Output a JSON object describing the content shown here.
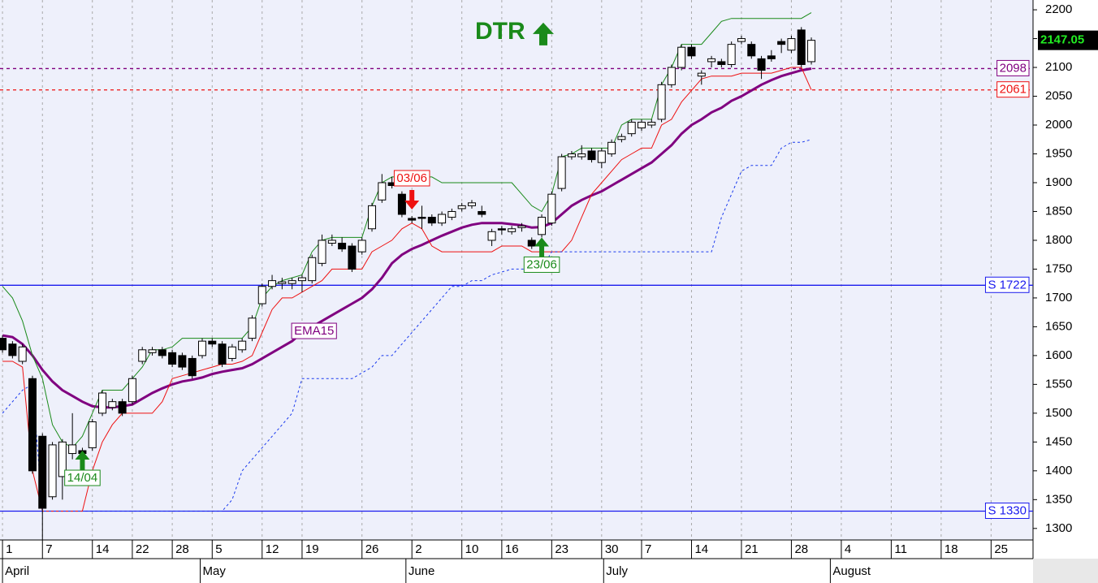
{
  "chart_data": {
    "type": "candlestick",
    "title": "DTR",
    "title_color": "#1a8a1a",
    "x": [
      0,
      1,
      2,
      3,
      4,
      5,
      6,
      7,
      8,
      9,
      10,
      11,
      12,
      13,
      14,
      15,
      16,
      17,
      18,
      19,
      20,
      21,
      22,
      23,
      24,
      25,
      26,
      27,
      28,
      29,
      30,
      31,
      32,
      33,
      34,
      35,
      36,
      37,
      38,
      39,
      40,
      41,
      42,
      43,
      44,
      45,
      46,
      47,
      48,
      49,
      50,
      51,
      52,
      53,
      54,
      55,
      56,
      57,
      58,
      59,
      60,
      61,
      62,
      63,
      64,
      65,
      66,
      67,
      68,
      69,
      70,
      71,
      72,
      73,
      74,
      75,
      76,
      77,
      78,
      79,
      80,
      81
    ],
    "open": [
      1630,
      1620,
      1590,
      1560,
      1460,
      1355,
      1390,
      1430,
      1435,
      1440,
      1500,
      1510,
      1520,
      1520,
      1590,
      1605,
      1610,
      1605,
      1600,
      1595,
      1600,
      1625,
      1620,
      1595,
      1610,
      1630,
      1690,
      1720,
      1725,
      1725,
      1730,
      1730,
      1760,
      1795,
      1795,
      1790,
      1780,
      1820,
      1870,
      1900,
      1880,
      1838,
      1840,
      1840,
      1830,
      1840,
      1855,
      1860,
      1850,
      1800,
      1820,
      1815,
      1822,
      1800,
      1810,
      1830,
      1890,
      1945,
      1945,
      1955,
      1935,
      1950,
      1975,
      1985,
      1995,
      2000,
      2010,
      2070,
      2100,
      2135,
      2085,
      2110,
      2110,
      2105,
      2145,
      2140,
      2115,
      2120,
      2145,
      2130,
      2165,
      2110
    ],
    "high": [
      1635,
      1625,
      1620,
      1565,
      1465,
      1450,
      1455,
      1500,
      1440,
      1490,
      1540,
      1525,
      1525,
      1565,
      1615,
      1615,
      1615,
      1610,
      1605,
      1600,
      1630,
      1630,
      1625,
      1620,
      1630,
      1670,
      1725,
      1740,
      1735,
      1735,
      1740,
      1775,
      1810,
      1810,
      1805,
      1795,
      1805,
      1865,
      1915,
      1910,
      1885,
      1842,
      1860,
      1845,
      1850,
      1855,
      1865,
      1870,
      1860,
      1820,
      1825,
      1825,
      1830,
      1805,
      1845,
      1885,
      1950,
      1955,
      1965,
      1960,
      1960,
      1975,
      1985,
      2010,
      2010,
      2010,
      2075,
      2105,
      2140,
      2140,
      2095,
      2120,
      2115,
      2145,
      2155,
      2145,
      2120,
      2130,
      2150,
      2155,
      2170,
      2152
    ],
    "low": [
      1605,
      1595,
      1585,
      1395,
      1280,
      1350,
      1350,
      1420,
      1425,
      1435,
      1495,
      1505,
      1495,
      1515,
      1585,
      1600,
      1595,
      1580,
      1575,
      1560,
      1595,
      1615,
      1580,
      1590,
      1605,
      1625,
      1685,
      1715,
      1715,
      1715,
      1710,
      1725,
      1755,
      1790,
      1780,
      1745,
      1775,
      1815,
      1865,
      1890,
      1840,
      1830,
      1820,
      1825,
      1825,
      1835,
      1850,
      1855,
      1840,
      1790,
      1810,
      1810,
      1815,
      1785,
      1805,
      1825,
      1885,
      1940,
      1940,
      1935,
      1925,
      1945,
      1970,
      1980,
      1990,
      1995,
      2005,
      2065,
      2095,
      2115,
      2070,
      2100,
      2100,
      2100,
      2140,
      2115,
      2080,
      2110,
      2125,
      2125,
      2100,
      2105
    ],
    "close": [
      1610,
      1600,
      1615,
      1400,
      1335,
      1445,
      1450,
      1445,
      1430,
      1485,
      1535,
      1520,
      1500,
      1560,
      1610,
      1610,
      1600,
      1585,
      1580,
      1565,
      1625,
      1620,
      1585,
      1615,
      1625,
      1665,
      1720,
      1730,
      1728,
      1730,
      1735,
      1770,
      1800,
      1800,
      1785,
      1750,
      1800,
      1860,
      1900,
      1895,
      1845,
      1835,
      1838,
      1830,
      1845,
      1850,
      1860,
      1865,
      1845,
      1815,
      1818,
      1820,
      1825,
      1790,
      1840,
      1880,
      1945,
      1950,
      1950,
      1940,
      1955,
      1970,
      1980,
      2005,
      2005,
      2005,
      2070,
      2100,
      2135,
      2120,
      2090,
      2115,
      2105,
      2140,
      2150,
      2120,
      2095,
      2115,
      2140,
      2150,
      2105,
      2147.05
    ],
    "overlays": [
      {
        "color": "#800080",
        "width": 3,
        "style": "solid",
        "values": [
          1635,
          1632,
          1620,
          1600,
          1575,
          1555,
          1540,
          1530,
          1520,
          1512,
          1510,
          1510,
          1512,
          1515,
          1525,
          1535,
          1543,
          1550,
          1555,
          1558,
          1562,
          1568,
          1572,
          1575,
          1578,
          1585,
          1595,
          1605,
          1615,
          1625,
          1640,
          1650,
          1660,
          1670,
          1680,
          1690,
          1700,
          1715,
          1735,
          1760,
          1775,
          1785,
          1792,
          1800,
          1808,
          1815,
          1822,
          1827,
          1830,
          1830,
          1830,
          1828,
          1826,
          1822,
          1823,
          1830,
          1845,
          1860,
          1870,
          1878,
          1885,
          1895,
          1905,
          1915,
          1925,
          1935,
          1950,
          1965,
          1985,
          2000,
          2010,
          2022,
          2030,
          2042,
          2050,
          2060,
          2070,
          2078,
          2085,
          2090,
          2095,
          2098
        ]
      },
      {
        "color": "#1a8a1a",
        "width": 1,
        "style": "solid",
        "values": [
          1720,
          1700,
          1660,
          1600,
          1560,
          1480,
          1450,
          1440,
          1460,
          1500,
          1540,
          1540,
          1540,
          1560,
          1580,
          1610,
          1610,
          1615,
          1630,
          1630,
          1630,
          1630,
          1630,
          1630,
          1630,
          1650,
          1700,
          1720,
          1730,
          1735,
          1740,
          1780,
          1800,
          1805,
          1805,
          1805,
          1805,
          1860,
          1900,
          1910,
          1910,
          1910,
          1910,
          1910,
          1900,
          1900,
          1900,
          1900,
          1900,
          1900,
          1900,
          1900,
          1880,
          1860,
          1850,
          1880,
          1945,
          1950,
          1960,
          1960,
          1960,
          1960,
          2000,
          2010,
          2010,
          2010,
          2070,
          2100,
          2140,
          2140,
          2140,
          2160,
          2180,
          2185,
          2185,
          2185,
          2185,
          2185,
          2185,
          2185,
          2185,
          2195
        ]
      },
      {
        "color": "#ee1111",
        "width": 1,
        "style": "solid",
        "values": [
          1590,
          1590,
          1580,
          1400,
          1330,
          1330,
          1330,
          1330,
          1330,
          1400,
          1450,
          1480,
          1500,
          1500,
          1500,
          1500,
          1520,
          1560,
          1565,
          1570,
          1575,
          1580,
          1585,
          1585,
          1590,
          1600,
          1640,
          1680,
          1700,
          1700,
          1710,
          1720,
          1730,
          1750,
          1750,
          1750,
          1750,
          1780,
          1790,
          1800,
          1820,
          1830,
          1820,
          1790,
          1780,
          1780,
          1780,
          1780,
          1780,
          1780,
          1790,
          1790,
          1790,
          1780,
          1780,
          1780,
          1780,
          1800,
          1840,
          1880,
          1900,
          1920,
          1940,
          1950,
          1960,
          1960,
          2000,
          2010,
          2040,
          2060,
          2080,
          2085,
          2085,
          2085,
          2090,
          2090,
          2090,
          2090,
          2095,
          2100,
          2100,
          2061
        ]
      },
      {
        "color": "#1a3aee",
        "width": 1,
        "style": "dashed",
        "values": [
          1500,
          1520,
          1540,
          1550,
          1330,
          1330,
          1330,
          1330,
          1330,
          1330,
          1330,
          1330,
          1330,
          1330,
          1330,
          1330,
          1330,
          1330,
          1330,
          1330,
          1330,
          1330,
          1330,
          1350,
          1400,
          1420,
          1440,
          1460,
          1480,
          1500,
          1560,
          1560,
          1560,
          1560,
          1560,
          1560,
          1570,
          1580,
          1600,
          1600,
          1620,
          1640,
          1660,
          1680,
          1700,
          1720,
          1720,
          1730,
          1730,
          1740,
          1745,
          1750,
          1750,
          1750,
          1750,
          1780,
          1780,
          1780,
          1780,
          1780,
          1780,
          1780,
          1780,
          1780,
          1780,
          1780,
          1780,
          1780,
          1780,
          1780,
          1780,
          1780,
          1840,
          1880,
          1920,
          1930,
          1930,
          1930,
          1960,
          1970,
          1970,
          1975
        ]
      }
    ],
    "levels": [
      {
        "value": 2098,
        "label": "2098",
        "color": "#800080",
        "style": "dotted"
      },
      {
        "value": 2061,
        "label": "2061",
        "color": "#ee1111",
        "style": "dotted"
      },
      {
        "value": 1722,
        "label": "S 1722",
        "color": "#1a1aee",
        "style": "solid"
      },
      {
        "value": 1330,
        "label": "S 1330",
        "color": "#1a1aee",
        "style": "solid"
      }
    ],
    "annotations": [
      {
        "text": "14/04",
        "color": "#1a8a1a",
        "arrow": "up"
      },
      {
        "text": "03/06",
        "color": "#ee1111",
        "arrow": "down"
      },
      {
        "text": "23/06",
        "color": "#1a8a1a",
        "arrow": "up"
      },
      {
        "text": "EMA15",
        "color": "#800080"
      }
    ],
    "last": {
      "value": 2147.05
    },
    "xlim": [
      -0.25,
      103.2
    ],
    "ylim": [
      1280,
      2217
    ],
    "xticks": [
      {
        "value": 0,
        "label": "1"
      },
      {
        "value": 4,
        "label": "7"
      },
      {
        "value": 9,
        "label": "14"
      },
      {
        "value": 13,
        "label": "22"
      },
      {
        "value": 17,
        "label": "28"
      },
      {
        "value": 21,
        "label": "5"
      },
      {
        "value": 26,
        "label": "12"
      },
      {
        "value": 30,
        "label": "19"
      },
      {
        "value": 36,
        "label": "26"
      },
      {
        "value": 41,
        "label": "2"
      },
      {
        "value": 46,
        "label": "10"
      },
      {
        "value": 50,
        "label": "16"
      },
      {
        "value": 55,
        "label": "23"
      },
      {
        "value": 60,
        "label": "30"
      },
      {
        "value": 64,
        "label": "7"
      },
      {
        "value": 69,
        "label": "14"
      },
      {
        "value": 74,
        "label": "21"
      },
      {
        "value": 79,
        "label": "28"
      },
      {
        "value": 84,
        "label": "4"
      },
      {
        "value": 89,
        "label": "11"
      },
      {
        "value": 94,
        "label": "18"
      },
      {
        "value": 99,
        "label": "25"
      }
    ],
    "months": [
      {
        "value": 0,
        "label": "April"
      },
      {
        "value": 19.8,
        "label": "May"
      },
      {
        "value": 40.4,
        "label": "June"
      },
      {
        "value": 60.2,
        "label": "July"
      },
      {
        "value": 82.9,
        "label": "August"
      }
    ],
    "yticks": [
      1300,
      1350,
      1400,
      1450,
      1500,
      1550,
      1600,
      1650,
      1700,
      1750,
      1800,
      1850,
      1900,
      1950,
      2000,
      2050,
      2100,
      2150,
      2200
    ],
    "grid": "x",
    "background": "#eef0fb"
  }
}
